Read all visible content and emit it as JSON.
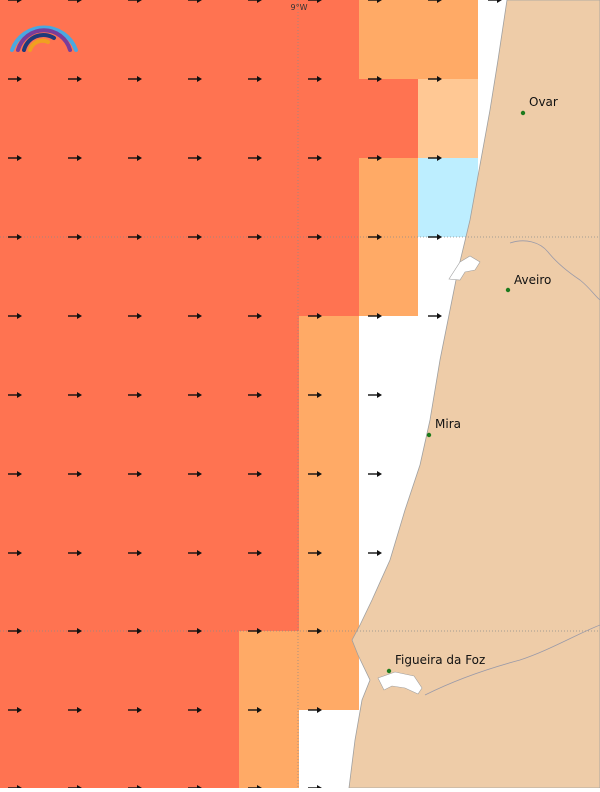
{
  "map": {
    "graticule_label": "9°W",
    "cities": [
      {
        "name": "Ovar"
      },
      {
        "name": "Aveiro"
      },
      {
        "name": "Mira"
      },
      {
        "name": "Figueira da Foz"
      }
    ],
    "legend_colors": {
      "high": "#ff7351",
      "medium": "#ffaa66",
      "low": "#ffc894",
      "lowest": "#bdeeff",
      "land": "#eecca8",
      "sea": "#ffffff",
      "city_marker": "#1d7a1d"
    }
  }
}
